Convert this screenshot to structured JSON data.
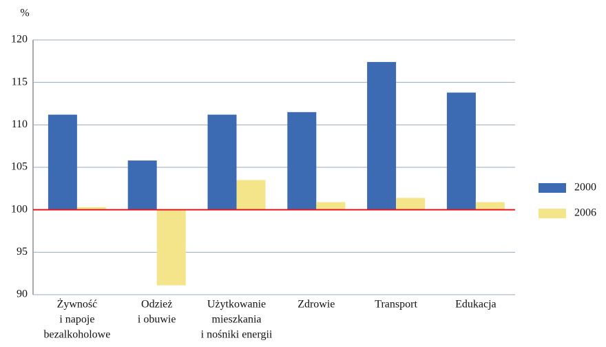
{
  "chart_data": {
    "type": "bar",
    "y_label": "%",
    "categories": [
      [
        "Żywność",
        "i napoje",
        "bezalkoholowe"
      ],
      [
        "Odzież",
        "i obuwie"
      ],
      [
        "Użytkowanie",
        "mieszkania",
        "i nośniki energii"
      ],
      [
        "Zdrowie"
      ],
      [
        "Transport"
      ],
      [
        "Edukacja"
      ]
    ],
    "series": [
      {
        "name": "2000",
        "color": "#3d6bb3",
        "values": [
          111.2,
          105.8,
          111.2,
          111.5,
          117.4,
          113.8
        ]
      },
      {
        "name": "2006",
        "color": "#f5e58a",
        "values": [
          100.3,
          91.1,
          103.5,
          100.9,
          101.4,
          100.9
        ]
      }
    ],
    "baseline": 100,
    "baseline_color": "#e8141b",
    "ylim": [
      90,
      120
    ],
    "yticks": [
      90,
      95,
      100,
      105,
      110,
      115,
      120
    ],
    "grid": true,
    "legend": "right"
  }
}
